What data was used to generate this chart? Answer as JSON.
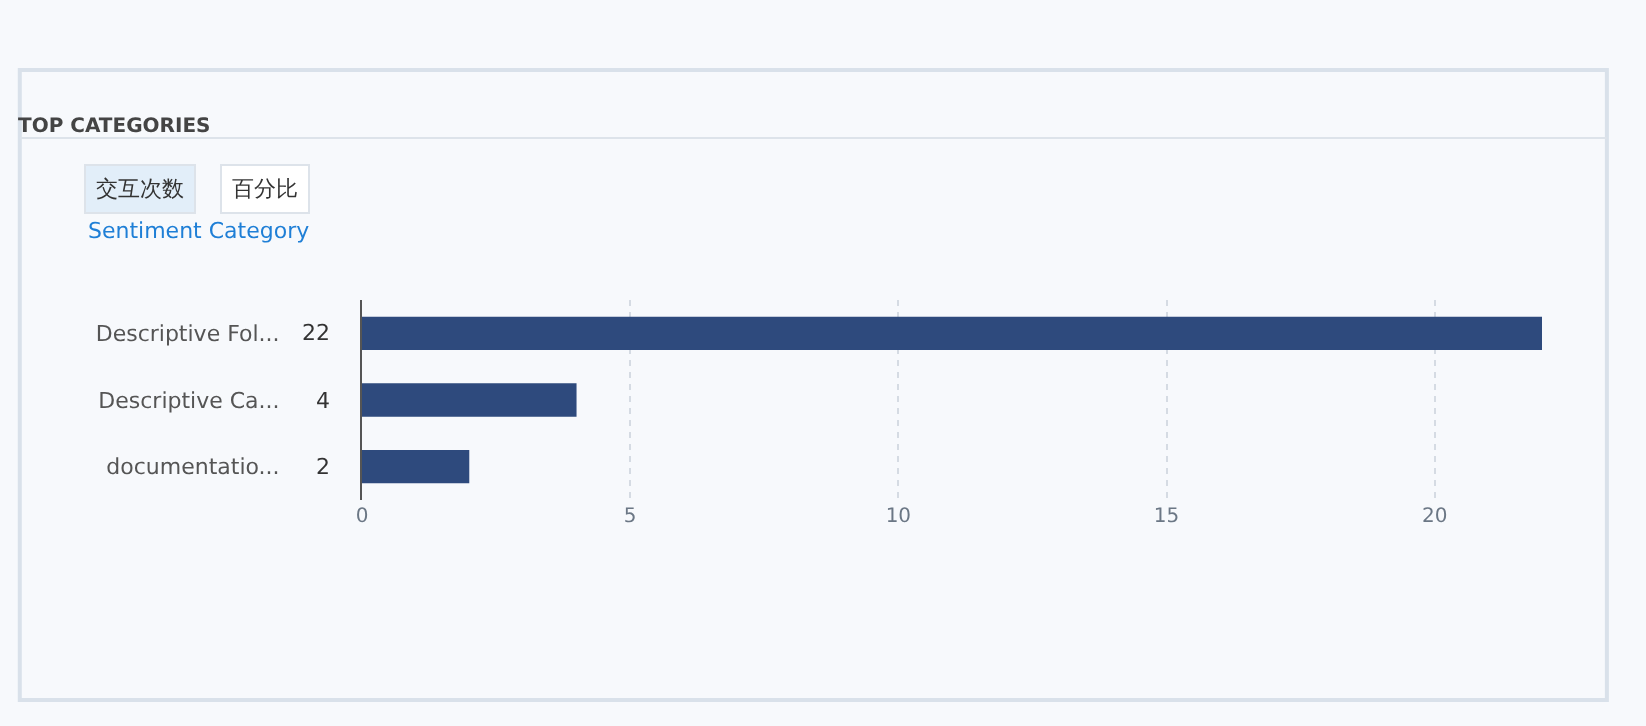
{
  "chart_data": {
    "type": "bar",
    "orientation": "horizontal",
    "title": "TOP CATEGORIES",
    "subtitle": "Sentiment Category",
    "annotations": [
      "交互次数",
      "百分比"
    ],
    "categories": [
      "Descriptive Fol...",
      "Descriptive Ca...",
      "documentatio..."
    ],
    "values": [
      22,
      4,
      2
    ],
    "color": "#2e4a7d",
    "data_labels": true,
    "xlim": [
      0,
      22
    ],
    "xticks": [
      0,
      5,
      10,
      15,
      20
    ],
    "grid": "x",
    "legend": false
  }
}
